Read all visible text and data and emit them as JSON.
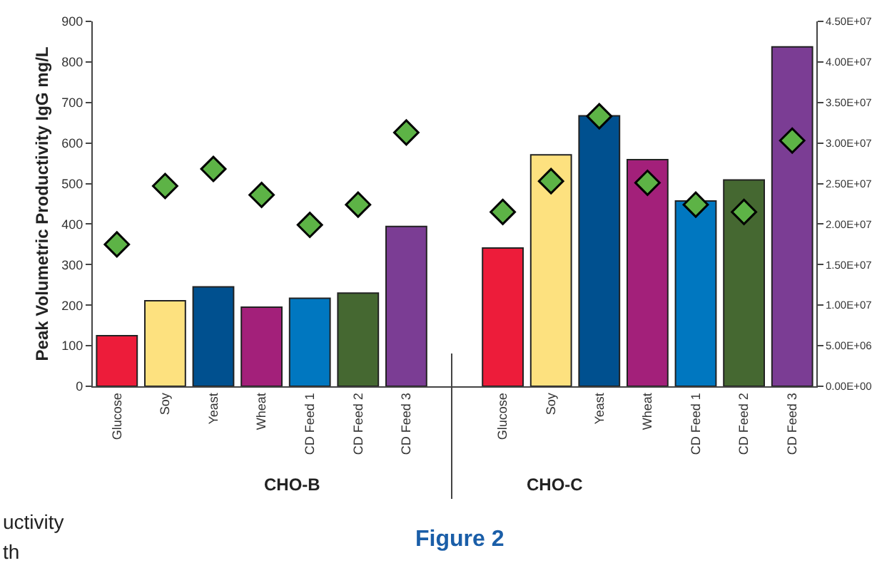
{
  "chart_data": {
    "type": "bar",
    "ylabel": "Peak Volumetric Productivity IgG mg/L",
    "categories": [
      "Glucose",
      "Soy",
      "Yeast",
      "Wheat",
      "CD Feed 1",
      "CD Feed 2",
      "CD Feed 3",
      null,
      "Glucose",
      "Soy",
      "Yeast",
      "Wheat",
      "CD Feed 1",
      "CD Feed 2",
      "CD Feed 3"
    ],
    "series": [
      {
        "colors": [
          "#ed1c3a",
          "#fde17f",
          "#00508f",
          "#a3207a",
          "#0077c0",
          "#456831",
          "#7b3d94",
          null,
          "#ed1c3a",
          "#fde17f",
          "#00508f",
          "#a3207a",
          "#0077c0",
          "#456831",
          "#7b3d94"
        ],
        "values": [
          125,
          211,
          245,
          195,
          217,
          230,
          394,
          null,
          341,
          571,
          667,
          559,
          457,
          509,
          837
        ]
      },
      {
        "type": "scatter",
        "axis": "y2",
        "color": "#5db346",
        "values": [
          17500000,
          24700000,
          26800000,
          23600000,
          19900000,
          22400000,
          31300000,
          null,
          21500000,
          25300000,
          33300000,
          25100000,
          22400000,
          21500000,
          30300000
        ]
      }
    ],
    "marker": "diamond",
    "ylim": [
      0,
      900
    ],
    "yticks": [
      0,
      100,
      200,
      300,
      400,
      500,
      600,
      700,
      800,
      900
    ],
    "y2lim": [
      0,
      45000000
    ],
    "y2ticks": [
      {
        "value": 0,
        "label": "0.00E+00"
      },
      {
        "value": 5000000,
        "label": "5.00E+06"
      },
      {
        "value": 10000000,
        "label": "1.00E+07"
      },
      {
        "value": 15000000,
        "label": "1.50E+07"
      },
      {
        "value": 20000000,
        "label": "2.00E+07"
      },
      {
        "value": 25000000,
        "label": "2.50E+07"
      },
      {
        "value": 30000000,
        "label": "3.00E+07"
      },
      {
        "value": 35000000,
        "label": "3.50E+07"
      },
      {
        "value": 40000000,
        "label": "4.00E+07"
      },
      {
        "value": 45000000,
        "label": "4.50E+07"
      }
    ],
    "grid": false,
    "annotations": [
      "CHO-B",
      "CHO-C",
      "Figure 2",
      "uctivity",
      "th"
    ]
  }
}
